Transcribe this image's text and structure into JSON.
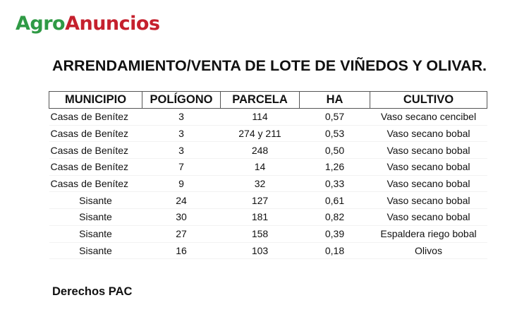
{
  "logo": {
    "part1": "Agro",
    "part2": "Anuncios",
    "color1": "#2f9a45",
    "color2": "#c5202d"
  },
  "title": "ARRENDAMIENTO/VENTA DE LOTE DE VIÑEDOS Y OLIVAR.",
  "table": {
    "headers": [
      "MUNICIPIO",
      "POLÍGONO",
      "PARCELA",
      "HA",
      "CULTIVO"
    ],
    "rows": [
      [
        "Casas de Benítez",
        "3",
        "114",
        "0,57",
        "Vaso secano cencibel"
      ],
      [
        "Casas de Benítez",
        "3",
        "274 y 211",
        "0,53",
        "Vaso secano bobal"
      ],
      [
        "Casas de Benítez",
        "3",
        "248",
        "0,50",
        "Vaso secano bobal"
      ],
      [
        "Casas de Benítez",
        "7",
        "14",
        "1,26",
        "Vaso secano bobal"
      ],
      [
        "Casas de Benítez",
        "9",
        "32",
        "0,33",
        "Vaso secano bobal"
      ],
      [
        "Sisante",
        "24",
        "127",
        "0,61",
        "Vaso secano bobal"
      ],
      [
        "Sisante",
        "30",
        "181",
        "0,82",
        "Vaso secano bobal"
      ],
      [
        "Sisante",
        "27",
        "158",
        "0,39",
        "Espaldera riego bobal"
      ],
      [
        "Sisante",
        "16",
        "103",
        "0,18",
        "Olivos"
      ]
    ]
  },
  "footer": "Derechos PAC"
}
